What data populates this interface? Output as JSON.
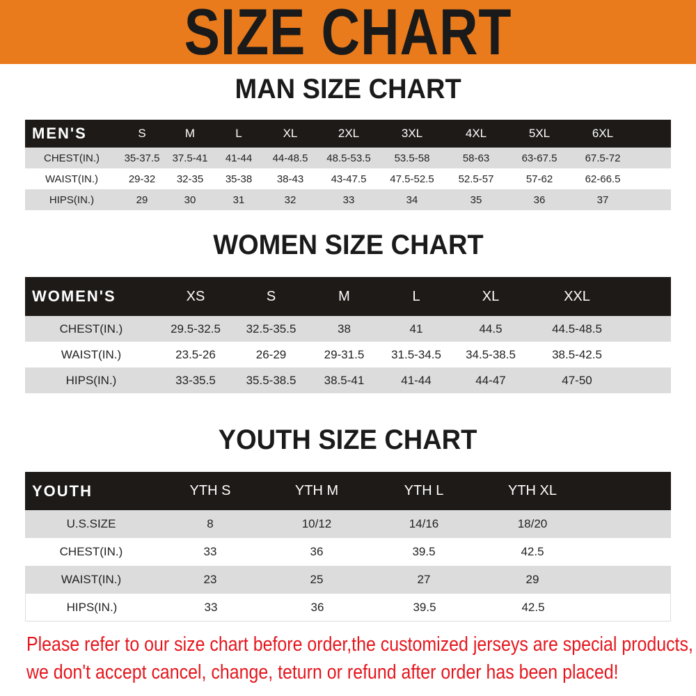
{
  "title": "SIZE CHART",
  "colors": {
    "banner": "#e97b1c",
    "header_row": "#1e1a18",
    "shaded_row": "#dcdcdc",
    "notice": "#e5161d"
  },
  "men": {
    "heading": "MAN SIZE CHART",
    "header": [
      "MEN'S",
      "S",
      "M",
      "L",
      "XL",
      "2XL",
      "3XL",
      "4XL",
      "5XL",
      "6XL"
    ],
    "rows": [
      [
        "CHEST(IN.)",
        "35-37.5",
        "37.5-41",
        "41-44",
        "44-48.5",
        "48.5-53.5",
        "53.5-58",
        "58-63",
        "63-67.5",
        "67.5-72"
      ],
      [
        "WAIST(IN.)",
        "29-32",
        "32-35",
        "35-38",
        "38-43",
        "43-47.5",
        "47.5-52.5",
        "52.5-57",
        "57-62",
        "62-66.5"
      ],
      [
        "HIPS(IN.)",
        "29",
        "30",
        "31",
        "32",
        "33",
        "34",
        "35",
        "36",
        "37"
      ]
    ]
  },
  "women": {
    "heading": "WOMEN SIZE CHART",
    "header": [
      "WOMEN'S",
      "XS",
      "S",
      "M",
      "L",
      "XL",
      "XXL"
    ],
    "rows": [
      [
        "CHEST(IN.)",
        "29.5-32.5",
        "32.5-35.5",
        "38",
        "41",
        "44.5",
        "44.5-48.5"
      ],
      [
        "WAIST(IN.)",
        "23.5-26",
        "26-29",
        "29-31.5",
        "31.5-34.5",
        "34.5-38.5",
        "38.5-42.5"
      ],
      [
        "HIPS(IN.)",
        "33-35.5",
        "35.5-38.5",
        "38.5-41",
        "41-44",
        "44-47",
        "47-50"
      ]
    ]
  },
  "youth": {
    "heading": "YOUTH SIZE CHART",
    "header": [
      "YOUTH",
      "YTH S",
      "YTH M",
      "YTH L",
      "YTH XL"
    ],
    "rows": [
      [
        "U.S.SIZE",
        "8",
        "10/12",
        "14/16",
        "18/20"
      ],
      [
        "CHEST(IN.)",
        "33",
        "36",
        "39.5",
        "42.5"
      ],
      [
        "WAIST(IN.)",
        "23",
        "25",
        "27",
        "29"
      ],
      [
        "HIPS(IN.)",
        "33",
        "36",
        "39.5",
        "42.5"
      ]
    ]
  },
  "notice": [
    "Please refer to our size chart before order,the customized jerseys are special products,",
    "we don't accept cancel, change, teturn or refund after order has been placed!"
  ]
}
